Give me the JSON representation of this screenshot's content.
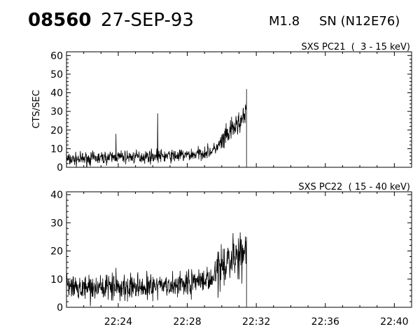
{
  "header": {
    "event_id": "08560",
    "date": "27-SEP-93",
    "flare_class": "M1.8",
    "location": "SN (N12E76)"
  },
  "colors": {
    "line": "#000000",
    "background": "#ffffff"
  },
  "chart_data": [
    {
      "type": "line",
      "title": "SXS PC21  (  3 - 15 keV)",
      "ylabel": "CTS/SEC",
      "xlim": [
        "22:21",
        "22:41"
      ],
      "ylim": [
        0,
        62
      ],
      "yticks": [
        0,
        10,
        20,
        30,
        40,
        50,
        60
      ],
      "grid": false,
      "noise_amplitude": 2.5,
      "spikes": [
        {
          "t": "22:23:52",
          "value": 18
        },
        {
          "t": "22:26:17",
          "value": 29
        }
      ],
      "data_end": "22:31:26",
      "series": [
        {
          "x": [
            "22:21:00",
            "22:22:00",
            "22:23:00",
            "22:24:00",
            "22:25:00",
            "22:26:00",
            "22:27:00",
            "22:28:00",
            "22:28:30",
            "22:29:00",
            "22:29:30",
            "22:30:00",
            "22:30:30",
            "22:31:00",
            "22:31:20",
            "22:31:26"
          ],
          "y": [
            4,
            4.5,
            5,
            5.5,
            5.5,
            6,
            6,
            6.5,
            7,
            8,
            9,
            13,
            19,
            24,
            27,
            30
          ]
        }
      ]
    },
    {
      "type": "line",
      "title": "SXS PC22  ( 15 - 40 keV)",
      "ylabel": "",
      "xlim": [
        "22:21",
        "22:41"
      ],
      "ylim": [
        0,
        41
      ],
      "yticks": [
        0,
        10,
        20,
        30,
        40
      ],
      "xticks": [
        "22:24",
        "22:28",
        "22:32",
        "22:36",
        "22:40"
      ],
      "grid": false,
      "noise_amplitude": 3.2,
      "spikes": [
        {
          "t": "22:23:52",
          "value": 14
        }
      ],
      "data_end": "22:31:26",
      "series": [
        {
          "x": [
            "22:21:00",
            "22:22:00",
            "22:23:00",
            "22:24:00",
            "22:25:00",
            "22:26:00",
            "22:27:00",
            "22:28:00",
            "22:29:00",
            "22:29:30",
            "22:30:00",
            "22:30:30",
            "22:31:00",
            "22:31:26"
          ],
          "y": [
            6.5,
            7,
            7,
            7,
            7,
            7,
            7.5,
            8,
            10,
            11,
            14,
            17,
            19,
            20
          ]
        }
      ]
    }
  ]
}
